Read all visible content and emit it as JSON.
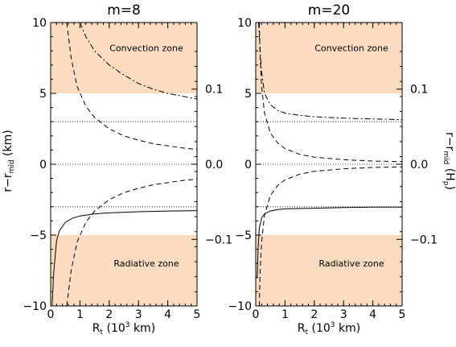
{
  "chart_data": {
    "type": "line",
    "ylabel_left": {
      "base": "r−r",
      "sub": "mid",
      "unit": " (km)"
    },
    "ylabel_right": {
      "base": "r−r",
      "sub": "mid",
      "unit_pre": " (H",
      "unit_sub": "p",
      "unit_post": ")"
    },
    "xlabel": {
      "base": "R",
      "sub": "t",
      "mid": " (10",
      "sup": "3",
      "unit": " km)"
    },
    "xlim": [
      0,
      5
    ],
    "ylim": [
      -10,
      10
    ],
    "x_ticks": [
      "0",
      "1",
      "2",
      "3",
      "4",
      "5"
    ],
    "y_ticks_left": [
      "10",
      "5",
      "0",
      "−5",
      "−10"
    ],
    "y_ticks_right": [
      "0.1",
      "0.0",
      "−0.1"
    ],
    "y_ticks_right_values": [
      5.3,
      0,
      -5.3
    ],
    "zones": {
      "convection": {
        "label": "Convection zone",
        "from": 5,
        "to": 10,
        "color": "#fbdcc0"
      },
      "radiative": {
        "label": "Radiative zone",
        "from": -10,
        "to": -5,
        "color": "#fbdcc0"
      }
    },
    "reference_lines": [
      3,
      0,
      -3
    ],
    "panels": [
      {
        "title": "m=8",
        "series": [
          {
            "style": "solid",
            "x": [
              0.05,
              0.1,
              0.2,
              0.3,
              0.5,
              0.75,
              1,
              1.5,
              2,
              3,
              4,
              5
            ],
            "y": [
              -10,
              -7.8,
              -5.4,
              -4.7,
              -4.1,
              -3.8,
              -3.65,
              -3.5,
              -3.43,
              -3.35,
              -3.3,
              -3.27
            ]
          },
          {
            "style": "dashed",
            "x": [
              0.55,
              0.7,
              0.9,
              1.2,
              1.5,
              2,
              2.5,
              3,
              3.5,
              4,
              4.5,
              5
            ],
            "y": [
              -10,
              -7.5,
              -5.5,
              -4.1,
              -3.3,
              -2.5,
              -2.0,
              -1.7,
              -1.45,
              -1.3,
              -1.15,
              -1.05
            ]
          },
          {
            "style": "dashed",
            "x": [
              0.55,
              0.7,
              0.9,
              1.2,
              1.5,
              2,
              2.5,
              3,
              3.5,
              4,
              4.5,
              5
            ],
            "y": [
              10,
              7.5,
              5.5,
              4.1,
              3.3,
              2.5,
              2.0,
              1.7,
              1.45,
              1.3,
              1.15,
              1.05
            ]
          },
          {
            "style": "dashdot",
            "x": [
              1.0,
              1.2,
              1.5,
              2,
              2.5,
              3,
              3.5,
              4,
              4.5,
              5
            ],
            "y": [
              10,
              9.0,
              8.0,
              7.0,
              6.3,
              5.7,
              5.3,
              5.0,
              4.8,
              4.6
            ]
          }
        ]
      },
      {
        "title": "m=20",
        "series": [
          {
            "style": "solid",
            "x": [
              0.05,
              0.08,
              0.12,
              0.2,
              0.3,
              0.5,
              0.75,
              1,
              2,
              3,
              4,
              5
            ],
            "y": [
              -8,
              -6,
              -4.5,
              -3.8,
              -3.5,
              -3.3,
              -3.2,
              -3.15,
              -3.1,
              -3.05,
              -3.03,
              -3.02
            ]
          },
          {
            "style": "dashed",
            "x": [
              0.12,
              0.15,
              0.2,
              0.3,
              0.5,
              0.75,
              1,
              1.5,
              2,
              3,
              4,
              5
            ],
            "y": [
              -10,
              -7.5,
              -5.5,
              -3.6,
              -2.2,
              -1.5,
              -1.1,
              -0.7,
              -0.5,
              -0.32,
              -0.23,
              -0.18
            ]
          },
          {
            "style": "dashed",
            "x": [
              0.12,
              0.15,
              0.2,
              0.3,
              0.5,
              0.75,
              1,
              1.5,
              2,
              3,
              4,
              5
            ],
            "y": [
              10,
              7.5,
              5.5,
              3.6,
              2.2,
              1.5,
              1.1,
              0.7,
              0.5,
              0.32,
              0.23,
              0.18
            ]
          },
          {
            "style": "dashdot",
            "x": [
              0.1,
              0.15,
              0.2,
              0.3,
              0.5,
              0.75,
              1,
              1.5,
              2,
              3,
              4,
              5
            ],
            "y": [
              10,
              8.0,
              6.5,
              5.0,
              4.2,
              3.8,
              3.6,
              3.45,
              3.35,
              3.25,
              3.2,
              3.15
            ]
          }
        ]
      }
    ]
  }
}
